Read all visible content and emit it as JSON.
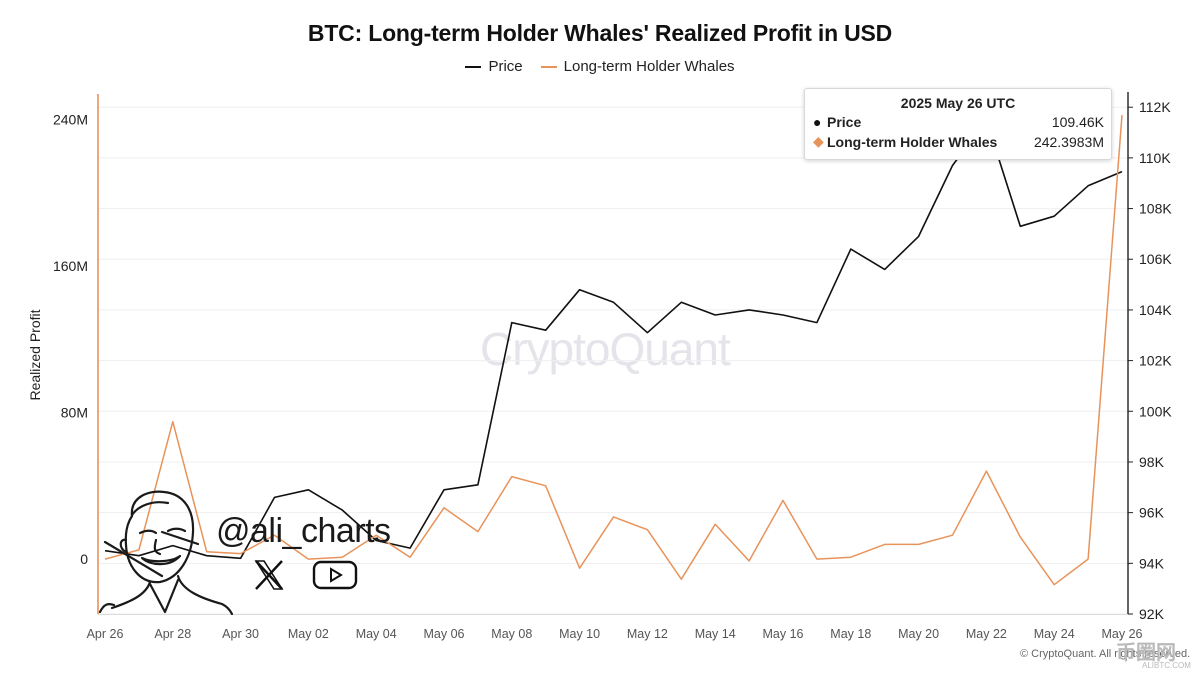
{
  "title": "BTC: Long-term Holder Whales' Realized Profit in USD",
  "legend": [
    {
      "label": "Price",
      "color": "#111111"
    },
    {
      "label": "Long-term Holder Whales",
      "color": "#e8935a"
    }
  ],
  "tooltip": {
    "date": "2025 May 26 UTC",
    "rows": [
      {
        "name": "Price",
        "value": "109.46K",
        "marker": "●",
        "color": "#111111"
      },
      {
        "name": "Long-term Holder Whales",
        "value": "242.3983M",
        "marker": "◆",
        "color": "#e8935a"
      }
    ]
  },
  "watermark": "CryptoQuant",
  "copyright": "© CryptoQuant. All rights reserved.",
  "handle": "@ali_charts",
  "corner_logo": "币圈网",
  "corner_logo_sub": "ALIBTC.COM",
  "chart_data": {
    "type": "line",
    "title": "BTC: Long-term Holder Whales' Realized Profit in USD",
    "xlabel": "",
    "ylabel": "Realized Profit",
    "y2label": "",
    "categories": [
      "Apr 26",
      "Apr 27",
      "Apr 28",
      "Apr 29",
      "Apr 30",
      "May 01",
      "May 02",
      "May 03",
      "May 04",
      "May 05",
      "May 06",
      "May 07",
      "May 08",
      "May 09",
      "May 10",
      "May 11",
      "May 12",
      "May 13",
      "May 14",
      "May 15",
      "May 16",
      "May 17",
      "May 18",
      "May 19",
      "May 20",
      "May 21",
      "May 22",
      "May 23",
      "May 24",
      "May 25",
      "May 26"
    ],
    "xticks": [
      "Apr 26",
      "Apr 28",
      "Apr 30",
      "May 02",
      "May 04",
      "May 06",
      "May 08",
      "May 10",
      "May 12",
      "May 14",
      "May 16",
      "May 18",
      "May 20",
      "May 22",
      "May 24",
      "May 26"
    ],
    "ylim": [
      -30,
      255
    ],
    "yticks": [
      0,
      80,
      160,
      240
    ],
    "ytick_labels": [
      "0",
      "80M",
      "160M",
      "240M"
    ],
    "y2lim": [
      92,
      112.6
    ],
    "y2ticks": [
      92,
      94,
      96,
      98,
      100,
      102,
      104,
      106,
      108,
      110,
      112
    ],
    "y2tick_labels": [
      "92K",
      "94K",
      "96K",
      "98K",
      "100K",
      "102K",
      "104K",
      "106K",
      "108K",
      "110K",
      "112K"
    ],
    "series": [
      {
        "name": "Price",
        "axis": "right",
        "color": "#111111",
        "unit": "K",
        "values": [
          94.5,
          94.3,
          94.7,
          94.3,
          94.2,
          96.6,
          96.9,
          96.1,
          94.9,
          94.6,
          96.9,
          97.1,
          103.5,
          103.2,
          104.8,
          104.3,
          103.1,
          104.3,
          103.8,
          104.0,
          103.8,
          103.5,
          106.4,
          105.6,
          106.9,
          109.7,
          111.5,
          107.3,
          107.7,
          108.9,
          109.46
        ]
      },
      {
        "name": "Long-term Holder Whales",
        "axis": "left",
        "color": "#e8935a",
        "unit": "M",
        "values": [
          0,
          5,
          75,
          4,
          3,
          13,
          0,
          1,
          13,
          1,
          28,
          15,
          45,
          40,
          -5,
          23,
          16,
          -11,
          19,
          -1,
          32,
          0,
          1,
          8,
          8,
          13,
          48,
          12,
          -14,
          0,
          242.4
        ]
      }
    ]
  }
}
